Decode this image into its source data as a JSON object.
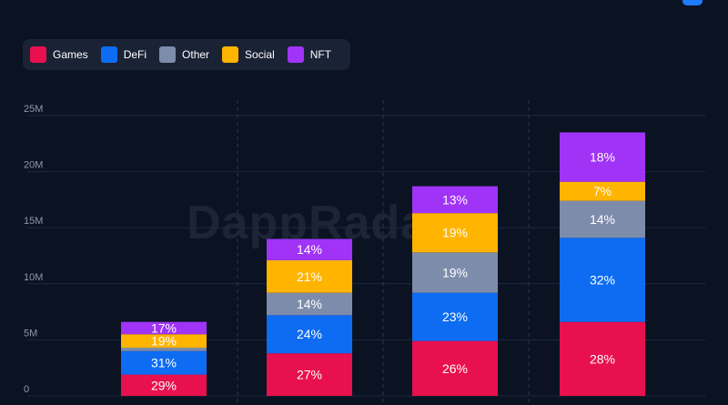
{
  "legend": [
    {
      "label": "Games",
      "color": "#e8104e"
    },
    {
      "label": "DeFi",
      "color": "#0e6cf2"
    },
    {
      "label": "Other",
      "color": "#7e8cab"
    },
    {
      "label": "Social",
      "color": "#ffb400"
    },
    {
      "label": "NFT",
      "color": "#a033f6"
    }
  ],
  "watermark": "DappRadar",
  "chart_data": {
    "type": "bar",
    "stacked": true,
    "title": "",
    "xlabel": "",
    "ylabel": "",
    "ylim": [
      0,
      25000000
    ],
    "yticks": [
      "0",
      "5M",
      "10M",
      "15M",
      "20M",
      "25M"
    ],
    "grid": true,
    "categories": [
      "",
      "",
      "",
      ""
    ],
    "totals": [
      6.6,
      14.0,
      18.7,
      23.5
    ],
    "series": [
      {
        "name": "Games",
        "color": "#e8104e",
        "values": [
          1.9,
          3.8,
          4.9,
          6.6
        ],
        "labels": [
          "29%",
          "27%",
          "26%",
          "28%"
        ]
      },
      {
        "name": "DeFi",
        "color": "#0e6cf2",
        "values": [
          2.1,
          3.4,
          4.3,
          7.5
        ],
        "labels": [
          "31%",
          "24%",
          "23%",
          "32%"
        ]
      },
      {
        "name": "Other",
        "color": "#7e8cab",
        "values": [
          0.3,
          2.0,
          3.6,
          3.3
        ],
        "labels": [
          "",
          "14%",
          "19%",
          "14%"
        ]
      },
      {
        "name": "Social",
        "color": "#ffb400",
        "values": [
          1.2,
          2.9,
          3.5,
          1.7
        ],
        "labels": [
          "19%",
          "21%",
          "19%",
          "7%"
        ]
      },
      {
        "name": "NFT",
        "color": "#a033f6",
        "values": [
          1.1,
          1.9,
          2.4,
          4.4
        ],
        "labels": [
          "17%",
          "14%",
          "13%",
          "18%"
        ]
      }
    ],
    "value_unit": "M"
  }
}
